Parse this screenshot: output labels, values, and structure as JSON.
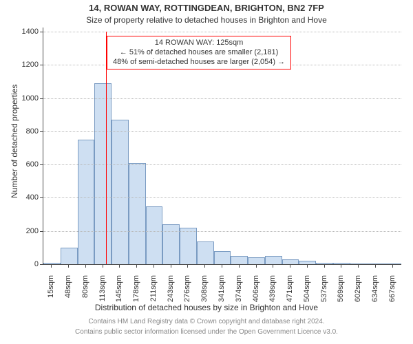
{
  "title_line1": "14, ROWAN WAY, ROTTINGDEAN, BRIGHTON, BN2 7FP",
  "title_line2": "Size of property relative to detached houses in Brighton and Hove",
  "y_axis_label": "Number of detached properties",
  "x_axis_title": "Distribution of detached houses by size in Brighton and Hove",
  "footer_line1": "Contains HM Land Registry data © Crown copyright and database right 2024.",
  "footer_line2": "Contains public sector information licensed under the Open Government Licence v3.0.",
  "annotation": {
    "line1": "14 ROWAN WAY: 125sqm",
    "line2": "← 51% of detached houses are smaller (2,181)",
    "line3": "48% of semi-detached houses are larger (2,054) →",
    "border_color": "#ff0000",
    "background_color": "#ffffff",
    "font_size": 11
  },
  "chart": {
    "type": "histogram",
    "ylim": [
      0,
      1400
    ],
    "ytick_step": 200,
    "yticks": [
      0,
      200,
      400,
      600,
      800,
      1000,
      1200,
      1400
    ],
    "x_categories": [
      "15sqm",
      "48sqm",
      "80sqm",
      "113sqm",
      "145sqm",
      "178sqm",
      "211sqm",
      "243sqm",
      "276sqm",
      "308sqm",
      "341sqm",
      "374sqm",
      "406sqm",
      "439sqm",
      "471sqm",
      "504sqm",
      "537sqm",
      "569sqm",
      "602sqm",
      "634sqm",
      "667sqm"
    ],
    "values": [
      8,
      100,
      750,
      1090,
      870,
      610,
      350,
      240,
      220,
      135,
      80,
      50,
      40,
      50,
      30,
      20,
      10,
      8,
      4,
      4,
      4
    ],
    "bar_fill": "#cedff2",
    "bar_border": "#7a9bc2",
    "bar_width_ratio": 1.0,
    "background_color": "#ffffff",
    "grid_color": "#b9b9b9",
    "axis_color": "#4a4a4a",
    "marker_line": {
      "x_position_ratio": 0.175,
      "color": "#ff0000",
      "width": 1
    },
    "tick_font_size": 11,
    "title_font_size": 13,
    "subtitle_font_size": 12,
    "label_font_size": 12,
    "footer_font_size": 10,
    "footer_color": "#888888"
  }
}
